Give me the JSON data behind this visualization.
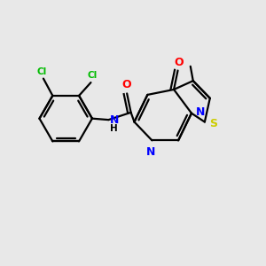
{
  "background_color": "#e8e8e8",
  "atom_colors": {
    "C": "#000000",
    "N": "#0000ff",
    "O": "#ff0000",
    "S": "#cccc00",
    "Cl": "#00bb00",
    "NH_color": "#00aaaa"
  },
  "figsize": [
    3.0,
    3.0
  ],
  "dpi": 100,
  "lw": 1.6
}
